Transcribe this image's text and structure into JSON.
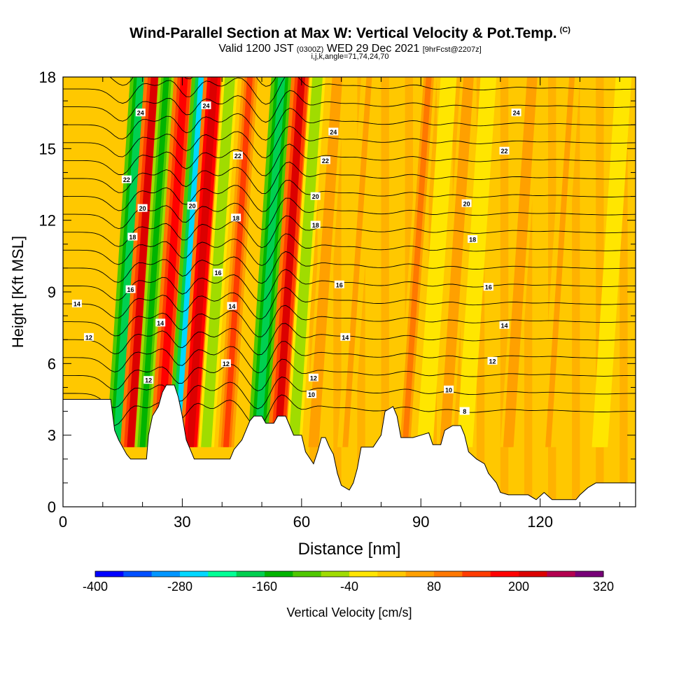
{
  "header": {
    "title": "Wind-Parallel Section at Max W: Vertical Velocity & Pot.Temp.",
    "copyright": "(C)",
    "subtitle_a": "Valid 1200 JST",
    "subtitle_b": "(0300Z)",
    "subtitle_c": "WED 29 Dec 2021",
    "subtitle_d": "[9hrFcst@2207z]",
    "subtitle_e": "i,j,k,angle=71,74,24,70"
  },
  "chart_data": {
    "type": "heatmap",
    "xlabel": "Distance [nm]",
    "ylabel": "Height [Kft MSL]",
    "xlim": [
      0,
      144
    ],
    "ylim": [
      0,
      18
    ],
    "x_ticks": [
      "0",
      "30",
      "60",
      "90",
      "120"
    ],
    "y_ticks": [
      "0",
      "3",
      "6",
      "9",
      "12",
      "15",
      "18"
    ],
    "colorbar": {
      "label": "Vertical Velocity [cm/s]",
      "tick_labels": [
        "-400",
        "-280",
        "-160",
        "-40",
        "80",
        "200",
        "320"
      ],
      "levels": [
        -400,
        -360,
        -320,
        -280,
        -240,
        -200,
        -160,
        -120,
        -80,
        -40,
        0,
        40,
        80,
        120,
        160,
        200,
        240,
        280,
        320
      ],
      "colors": [
        "#0000ff",
        "#0050ff",
        "#0096ff",
        "#00d8ff",
        "#00ff96",
        "#00d050",
        "#00b400",
        "#50c800",
        "#a0dc00",
        "#ffe600",
        "#ffc800",
        "#ffa000",
        "#ff7800",
        "#ff3c00",
        "#ff0000",
        "#dc0000",
        "#b40050",
        "#780078"
      ]
    },
    "bands": [
      {
        "x": 13.5,
        "w": -200,
        "kind": "down"
      },
      {
        "x": 17,
        "w": 220,
        "kind": "up"
      },
      {
        "x": 20,
        "w": -140,
        "kind": "down"
      },
      {
        "x": 24.5,
        "w": 180,
        "kind": "up"
      },
      {
        "x": 29,
        "w": -260,
        "kind": "down"
      },
      {
        "x": 32,
        "w": 230,
        "kind": "up"
      },
      {
        "x": 36,
        "w": -80,
        "kind": "down"
      },
      {
        "x": 41,
        "w": 120,
        "kind": "up"
      },
      {
        "x": 49,
        "w": -180,
        "kind": "down"
      },
      {
        "x": 54,
        "w": 210,
        "kind": "up"
      },
      {
        "x": 58,
        "w": -60,
        "kind": "down"
      },
      {
        "x": 63,
        "w": 60,
        "kind": "up"
      },
      {
        "x": 71,
        "w": 40,
        "kind": "up"
      },
      {
        "x": 86,
        "w": 80,
        "kind": "up"
      },
      {
        "x": 91,
        "w": -40,
        "kind": "down"
      },
      {
        "x": 96,
        "w": 60,
        "kind": "up"
      },
      {
        "x": 101,
        "w": -40,
        "kind": "down"
      },
      {
        "x": 112,
        "w": 60,
        "kind": "up"
      },
      {
        "x": 122,
        "w": 50,
        "kind": "up"
      },
      {
        "x": 135,
        "w": -40,
        "kind": "down"
      }
    ],
    "terrain": [
      [
        0,
        4.5
      ],
      [
        12,
        4.5
      ],
      [
        13,
        3.2
      ],
      [
        14,
        2.8
      ],
      [
        15,
        2.5
      ],
      [
        16,
        2.2
      ],
      [
        17,
        2.0
      ],
      [
        19,
        2.0
      ],
      [
        21,
        2.0
      ],
      [
        21.5,
        3.0
      ],
      [
        22.5,
        3.8
      ],
      [
        24,
        4.2
      ],
      [
        25,
        4.8
      ],
      [
        26,
        5.1
      ],
      [
        28,
        5.1
      ],
      [
        29,
        4.6
      ],
      [
        30,
        3.8
      ],
      [
        31,
        2.8
      ],
      [
        33,
        2.0
      ],
      [
        36,
        2.0
      ],
      [
        40,
        2.0
      ],
      [
        42,
        2.0
      ],
      [
        43,
        2.4
      ],
      [
        45,
        2.8
      ],
      [
        46,
        3.2
      ],
      [
        47,
        3.6
      ],
      [
        48,
        3.8
      ],
      [
        50,
        3.8
      ],
      [
        51,
        3.5
      ],
      [
        53,
        3.5
      ],
      [
        54,
        3.8
      ],
      [
        56,
        3.8
      ],
      [
        57,
        3.4
      ],
      [
        58,
        3.0
      ],
      [
        60,
        3.0
      ],
      [
        61,
        2.3
      ],
      [
        63,
        1.8
      ],
      [
        64,
        2.3
      ],
      [
        65,
        2.9
      ],
      [
        66,
        2.9
      ],
      [
        67,
        2.5
      ],
      [
        68,
        2.2
      ],
      [
        69,
        1.4
      ],
      [
        70,
        0.9
      ],
      [
        72,
        0.7
      ],
      [
        73,
        1.0
      ],
      [
        74,
        1.6
      ],
      [
        75,
        2.5
      ],
      [
        78,
        2.5
      ],
      [
        80,
        3.0
      ],
      [
        81,
        4.0
      ],
      [
        83,
        4.2
      ],
      [
        84,
        3.8
      ],
      [
        85,
        2.9
      ],
      [
        88,
        2.9
      ],
      [
        90,
        3.0
      ],
      [
        92,
        3.1
      ],
      [
        93,
        2.6
      ],
      [
        95,
        2.6
      ],
      [
        96,
        3.2
      ],
      [
        98,
        3.4
      ],
      [
        100,
        3.4
      ],
      [
        101,
        3.0
      ],
      [
        102,
        2.3
      ],
      [
        104,
        2.0
      ],
      [
        106,
        1.8
      ],
      [
        107,
        1.4
      ],
      [
        109,
        1.0
      ],
      [
        110,
        0.6
      ],
      [
        112,
        0.5
      ],
      [
        117,
        0.5
      ],
      [
        119,
        0.3
      ],
      [
        121,
        0.6
      ],
      [
        123,
        0.3
      ],
      [
        129,
        0.3
      ],
      [
        130,
        0.5
      ],
      [
        132,
        0.8
      ],
      [
        134,
        1.0
      ],
      [
        144,
        1.0
      ]
    ],
    "theta_labels": [
      {
        "text": "24",
        "x": 19.5,
        "y": 16.5
      },
      {
        "text": "24",
        "x": 36,
        "y": 16.8
      },
      {
        "text": "24",
        "x": 68,
        "y": 15.7
      },
      {
        "text": "24",
        "x": 114,
        "y": 16.5
      },
      {
        "text": "22",
        "x": 16,
        "y": 13.7
      },
      {
        "text": "22",
        "x": 44,
        "y": 14.7
      },
      {
        "text": "22",
        "x": 66,
        "y": 14.5
      },
      {
        "text": "22",
        "x": 111,
        "y": 14.9
      },
      {
        "text": "20",
        "x": 20,
        "y": 12.5
      },
      {
        "text": "20",
        "x": 32.5,
        "y": 12.6
      },
      {
        "text": "20",
        "x": 63.5,
        "y": 13.0
      },
      {
        "text": "20",
        "x": 101.5,
        "y": 12.7
      },
      {
        "text": "18",
        "x": 17.5,
        "y": 11.3
      },
      {
        "text": "18",
        "x": 43.5,
        "y": 12.1
      },
      {
        "text": "18",
        "x": 63.5,
        "y": 11.8
      },
      {
        "text": "18",
        "x": 103,
        "y": 11.2
      },
      {
        "text": "16",
        "x": 17,
        "y": 9.1
      },
      {
        "text": "16",
        "x": 39,
        "y": 9.8
      },
      {
        "text": "16",
        "x": 69.5,
        "y": 9.3
      },
      {
        "text": "16",
        "x": 107,
        "y": 9.2
      },
      {
        "text": "14",
        "x": 3.5,
        "y": 8.5
      },
      {
        "text": "14",
        "x": 24.5,
        "y": 7.7
      },
      {
        "text": "14",
        "x": 42.5,
        "y": 8.4
      },
      {
        "text": "14",
        "x": 71,
        "y": 7.1
      },
      {
        "text": "14",
        "x": 111,
        "y": 7.6
      },
      {
        "text": "12",
        "x": 6.5,
        "y": 7.1
      },
      {
        "text": "12",
        "x": 41,
        "y": 6.0
      },
      {
        "text": "12",
        "x": 21.5,
        "y": 5.3
      },
      {
        "text": "12",
        "x": 63,
        "y": 5.4
      },
      {
        "text": "12",
        "x": 108,
        "y": 6.1
      },
      {
        "text": "10",
        "x": 62.5,
        "y": 4.7
      },
      {
        "text": "10",
        "x": 97,
        "y": 4.9
      },
      {
        "text": "8",
        "x": 101,
        "y": 4.0
      }
    ]
  }
}
